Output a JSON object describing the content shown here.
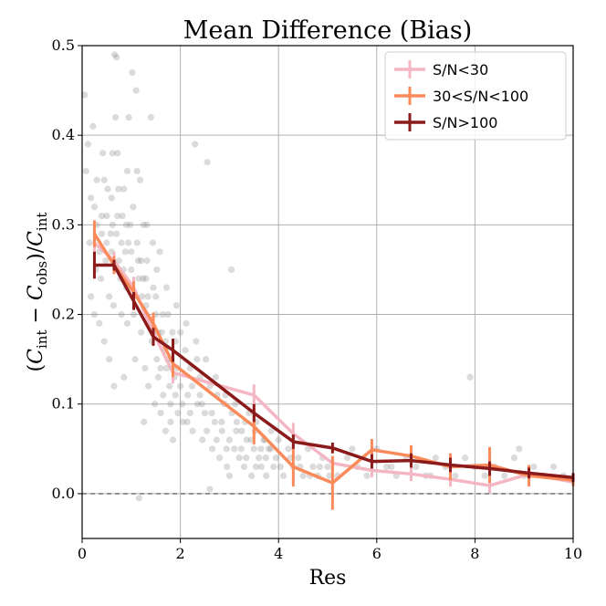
{
  "chart_data": {
    "type": "line",
    "title": "Mean Difference (Bias)",
    "xlabel": "Res",
    "ylabel_parts": {
      "open": "(",
      "c1": "C",
      "s1": "int",
      "minus": " − ",
      "c2": "C",
      "s2": "obs",
      "mid": ")/",
      "c3": "C",
      "s3": "int"
    },
    "xlim": [
      0,
      10
    ],
    "ylim": [
      -0.05,
      0.5
    ],
    "x_ticks": [
      "0",
      "2",
      "4",
      "6",
      "8",
      "10"
    ],
    "y_ticks": [
      "0.0",
      "0.1",
      "0.2",
      "0.3",
      "0.4",
      "0.5"
    ],
    "grid": true,
    "legend_position": "top-right",
    "reference_line": {
      "y": 0.0,
      "style": "dashed"
    },
    "series": [
      {
        "name": "S/N<30",
        "color": "#f4b6c2",
        "x": [
          0.25,
          0.65,
          1.05,
          1.45,
          1.85,
          3.5,
          4.3,
          5.1,
          5.9,
          6.7,
          7.5,
          8.3,
          9.1,
          10.0
        ],
        "y": [
          0.28,
          0.26,
          0.23,
          0.18,
          0.135,
          0.11,
          0.067,
          0.034,
          0.026,
          0.022,
          0.016,
          0.009,
          0.022,
          0.013
        ],
        "yerr": [
          0.015,
          0.01,
          0.012,
          0.012,
          0.012,
          0.012,
          0.012,
          0.008,
          0.008,
          0.008,
          0.008,
          0.008,
          0.008,
          0.005
        ]
      },
      {
        "name": "30<S/N<100",
        "color": "#fa8a5a",
        "x": [
          0.25,
          0.65,
          1.05,
          1.45,
          1.85,
          3.5,
          4.3,
          5.1,
          5.9,
          6.7,
          7.5,
          8.3,
          9.1,
          10.0
        ],
        "y": [
          0.29,
          0.255,
          0.225,
          0.19,
          0.145,
          0.075,
          0.03,
          0.012,
          0.049,
          0.042,
          0.03,
          0.032,
          0.02,
          0.015
        ],
        "yerr": [
          0.015,
          0.01,
          0.012,
          0.012,
          0.015,
          0.02,
          0.022,
          0.03,
          0.012,
          0.012,
          0.015,
          0.02,
          0.012,
          0.006
        ]
      },
      {
        "name": "S/N>100",
        "color": "#8b1a1a",
        "x": [
          0.25,
          0.65,
          1.05,
          1.45,
          1.85,
          3.5,
          4.3,
          5.1,
          5.9,
          6.7,
          7.5,
          8.3,
          9.1,
          10.0
        ],
        "y": [
          0.255,
          0.255,
          0.215,
          0.175,
          0.16,
          0.09,
          0.058,
          0.051,
          0.036,
          0.037,
          0.032,
          0.028,
          0.023,
          0.018
        ],
        "yerr": [
          0.015,
          0.006,
          0.01,
          0.01,
          0.013,
          0.01,
          0.008,
          0.006,
          0.008,
          0.008,
          0.008,
          0.008,
          0.006,
          0.005
        ]
      }
    ],
    "scatter": {
      "color": "#888888",
      "opacity": 0.3,
      "points": [
        [
          0.05,
          0.445
        ],
        [
          0.12,
          0.39
        ],
        [
          0.18,
          0.33
        ],
        [
          0.22,
          0.41
        ],
        [
          0.08,
          0.36
        ],
        [
          0.3,
          0.3
        ],
        [
          0.35,
          0.27
        ],
        [
          0.28,
          0.25
        ],
        [
          0.4,
          0.31
        ],
        [
          0.45,
          0.35
        ],
        [
          0.5,
          0.28
        ],
        [
          0.55,
          0.22
        ],
        [
          0.6,
          0.33
        ],
        [
          0.62,
          0.3
        ],
        [
          0.66,
          0.49
        ],
        [
          0.7,
          0.487
        ],
        [
          0.68,
          0.42
        ],
        [
          0.72,
          0.38
        ],
        [
          0.75,
          0.26
        ],
        [
          0.78,
          0.24
        ],
        [
          0.8,
          0.2
        ],
        [
          0.82,
          0.31
        ],
        [
          0.85,
          0.34
        ],
        [
          0.88,
          0.27
        ],
        [
          0.9,
          0.23
        ],
        [
          0.92,
          0.19
        ],
        [
          0.95,
          0.42
        ],
        [
          0.98,
          0.3
        ],
        [
          1.0,
          0.25
        ],
        [
          1.02,
          0.47
        ],
        [
          1.05,
          0.2
        ],
        [
          1.08,
          0.15
        ],
        [
          1.1,
          0.45
        ],
        [
          1.12,
          0.28
        ],
        [
          1.15,
          0.24
        ],
        [
          1.18,
          0.35
        ],
        [
          1.2,
          0.18
        ],
        [
          1.22,
          0.22
        ],
        [
          1.25,
          0.3
        ],
        [
          1.28,
          0.14
        ],
        [
          1.3,
          0.21
        ],
        [
          1.32,
          0.26
        ],
        [
          1.35,
          0.12
        ],
        [
          1.38,
          0.19
        ],
        [
          1.4,
          0.42
        ],
        [
          1.42,
          0.17
        ],
        [
          1.45,
          0.23
        ],
        [
          1.48,
          0.1
        ],
        [
          1.5,
          0.2
        ],
        [
          1.52,
          0.15
        ],
        [
          1.55,
          0.13
        ],
        [
          1.58,
          0.27
        ],
        [
          1.6,
          0.09
        ],
        [
          1.62,
          0.18
        ],
        [
          1.65,
          0.11
        ],
        [
          1.68,
          0.16
        ],
        [
          1.7,
          0.07
        ],
        [
          1.72,
          0.14
        ],
        [
          1.75,
          0.2
        ],
        [
          1.78,
          0.12
        ],
        [
          1.8,
          0.1
        ],
        [
          1.82,
          0.15
        ],
        [
          1.85,
          0.06
        ],
        [
          1.88,
          0.13
        ],
        [
          1.9,
          0.17
        ],
        [
          1.95,
          0.09
        ],
        [
          2.0,
          0.12
        ],
        [
          2.05,
          0.08
        ],
        [
          2.1,
          0.16
        ],
        [
          2.15,
          0.11
        ],
        [
          2.2,
          0.14
        ],
        [
          2.25,
          0.07
        ],
        [
          2.3,
          0.39
        ],
        [
          2.35,
          0.1
        ],
        [
          2.4,
          0.13
        ],
        [
          2.45,
          0.06
        ],
        [
          2.5,
          0.09
        ],
        [
          2.55,
          0.37
        ],
        [
          2.6,
          0.12
        ],
        [
          2.65,
          0.05
        ],
        [
          2.7,
          0.08
        ],
        [
          2.75,
          0.11
        ],
        [
          2.8,
          0.04
        ],
        [
          2.85,
          0.07
        ],
        [
          2.9,
          0.1
        ],
        [
          2.95,
          0.03
        ],
        [
          3.0,
          0.06
        ],
        [
          3.05,
          0.09
        ],
        [
          3.1,
          0.05
        ],
        [
          3.15,
          0.08
        ],
        [
          3.2,
          0.04
        ],
        [
          3.25,
          0.07
        ],
        [
          3.3,
          0.03
        ],
        [
          3.35,
          0.06
        ],
        [
          3.4,
          0.09
        ],
        [
          3.45,
          0.02
        ],
        [
          3.5,
          0.05
        ],
        [
          3.55,
          0.08
        ],
        [
          3.6,
          0.04
        ],
        [
          3.65,
          0.03
        ],
        [
          3.7,
          0.06
        ],
        [
          3.75,
          0.02
        ],
        [
          3.8,
          0.05
        ],
        [
          3.85,
          0.07
        ],
        [
          3.9,
          0.03
        ],
        [
          3.95,
          0.04
        ],
        [
          4.0,
          0.06
        ],
        [
          4.1,
          0.02
        ],
        [
          4.2,
          0.05
        ],
        [
          4.3,
          0.03
        ],
        [
          4.4,
          0.04
        ],
        [
          4.5,
          0.02
        ],
        [
          4.6,
          0.05
        ],
        [
          4.7,
          0.03
        ],
        [
          4.8,
          0.02
        ],
        [
          4.9,
          0.04
        ],
        [
          5.0,
          0.03
        ],
        [
          5.2,
          0.02
        ],
        [
          5.4,
          0.04
        ],
        [
          5.6,
          0.03
        ],
        [
          5.8,
          0.02
        ],
        [
          6.0,
          0.05
        ],
        [
          6.2,
          0.03
        ],
        [
          6.4,
          0.02
        ],
        [
          6.6,
          0.04
        ],
        [
          6.8,
          0.03
        ],
        [
          7.0,
          0.02
        ],
        [
          7.2,
          0.04
        ],
        [
          7.4,
          0.03
        ],
        [
          7.6,
          0.02
        ],
        [
          7.8,
          0.04
        ],
        [
          8.0,
          0.03
        ],
        [
          8.2,
          0.02
        ],
        [
          8.4,
          0.03
        ],
        [
          8.6,
          0.02
        ],
        [
          8.8,
          0.04
        ],
        [
          9.0,
          0.02
        ],
        [
          9.2,
          0.03
        ],
        [
          9.4,
          0.02
        ],
        [
          9.6,
          0.03
        ],
        [
          9.8,
          0.02
        ],
        [
          0.15,
          0.28
        ],
        [
          0.25,
          0.32
        ],
        [
          0.38,
          0.24
        ],
        [
          0.48,
          0.26
        ],
        [
          0.58,
          0.29
        ],
        [
          0.64,
          0.21
        ],
        [
          0.74,
          0.34
        ],
        [
          0.84,
          0.25
        ],
        [
          0.94,
          0.28
        ],
        [
          1.04,
          0.32
        ],
        [
          1.14,
          0.26
        ],
        [
          1.24,
          0.24
        ],
        [
          1.34,
          0.22
        ],
        [
          1.44,
          0.28
        ],
        [
          1.54,
          0.18
        ],
        [
          1.64,
          0.2
        ],
        [
          1.74,
          0.15
        ],
        [
          1.84,
          0.18
        ],
        [
          1.94,
          0.14
        ],
        [
          2.04,
          0.1
        ],
        [
          2.14,
          0.08
        ],
        [
          2.24,
          0.12
        ],
        [
          2.34,
          0.15
        ],
        [
          2.44,
          0.1
        ],
        [
          2.54,
          0.07
        ],
        [
          2.64,
          0.09
        ],
        [
          2.74,
          0.06
        ],
        [
          2.84,
          0.08
        ],
        [
          2.94,
          0.05
        ],
        [
          3.04,
          0.25
        ],
        [
          3.14,
          0.07
        ],
        [
          3.24,
          0.05
        ],
        [
          3.34,
          0.04
        ],
        [
          3.44,
          0.06
        ],
        [
          3.54,
          0.03
        ],
        [
          3.64,
          0.05
        ],
        [
          3.74,
          0.04
        ],
        [
          3.84,
          0.05
        ],
        [
          4.04,
          0.03
        ],
        [
          4.24,
          0.04
        ],
        [
          4.44,
          0.03
        ],
        [
          4.64,
          0.02
        ],
        [
          4.84,
          0.03
        ],
        [
          5.04,
          0.02
        ],
        [
          5.5,
          0.05
        ],
        [
          6.3,
          0.03
        ],
        [
          7.1,
          0.02
        ],
        [
          7.9,
          0.13
        ],
        [
          8.9,
          0.05
        ],
        [
          1.16,
          -0.005
        ],
        [
          2.6,
          0.005
        ],
        [
          3.0,
          0.02
        ],
        [
          0.55,
          0.15
        ],
        [
          0.45,
          0.17
        ],
        [
          0.35,
          0.19
        ],
        [
          0.25,
          0.2
        ],
        [
          0.65,
          0.12
        ],
        [
          0.85,
          0.13
        ],
        [
          1.26,
          0.08
        ],
        [
          0.18,
          0.22
        ],
        [
          0.42,
          0.38
        ],
        [
          0.52,
          0.34
        ],
        [
          0.62,
          0.38
        ],
        [
          0.72,
          0.31
        ],
        [
          0.92,
          0.36
        ],
        [
          1.12,
          0.36
        ],
        [
          1.32,
          0.3
        ],
        [
          1.52,
          0.25
        ],
        [
          1.72,
          0.23
        ],
        [
          1.92,
          0.21
        ],
        [
          2.12,
          0.19
        ],
        [
          2.32,
          0.17
        ],
        [
          2.52,
          0.15
        ],
        [
          2.72,
          0.13
        ],
        [
          2.92,
          0.11
        ],
        [
          3.12,
          0.1
        ],
        [
          3.32,
          0.08
        ],
        [
          3.52,
          0.07
        ],
        [
          3.72,
          0.06
        ],
        [
          0.3,
          0.35
        ],
        [
          0.4,
          0.29
        ],
        [
          0.5,
          0.31
        ],
        [
          0.6,
          0.27
        ],
        [
          0.7,
          0.29
        ],
        [
          0.8,
          0.28
        ],
        [
          0.9,
          0.3
        ],
        [
          1.0,
          0.27
        ],
        [
          1.1,
          0.22
        ],
        [
          1.2,
          0.26
        ],
        [
          1.3,
          0.24
        ],
        [
          1.4,
          0.19
        ],
        [
          1.5,
          0.22
        ],
        [
          1.6,
          0.14
        ],
        [
          1.7,
          0.17
        ],
        [
          1.8,
          0.08
        ],
        [
          1.9,
          0.11
        ],
        [
          2.0,
          0.18
        ],
        [
          2.2,
          0.09
        ],
        [
          2.4,
          0.11
        ]
      ]
    }
  }
}
